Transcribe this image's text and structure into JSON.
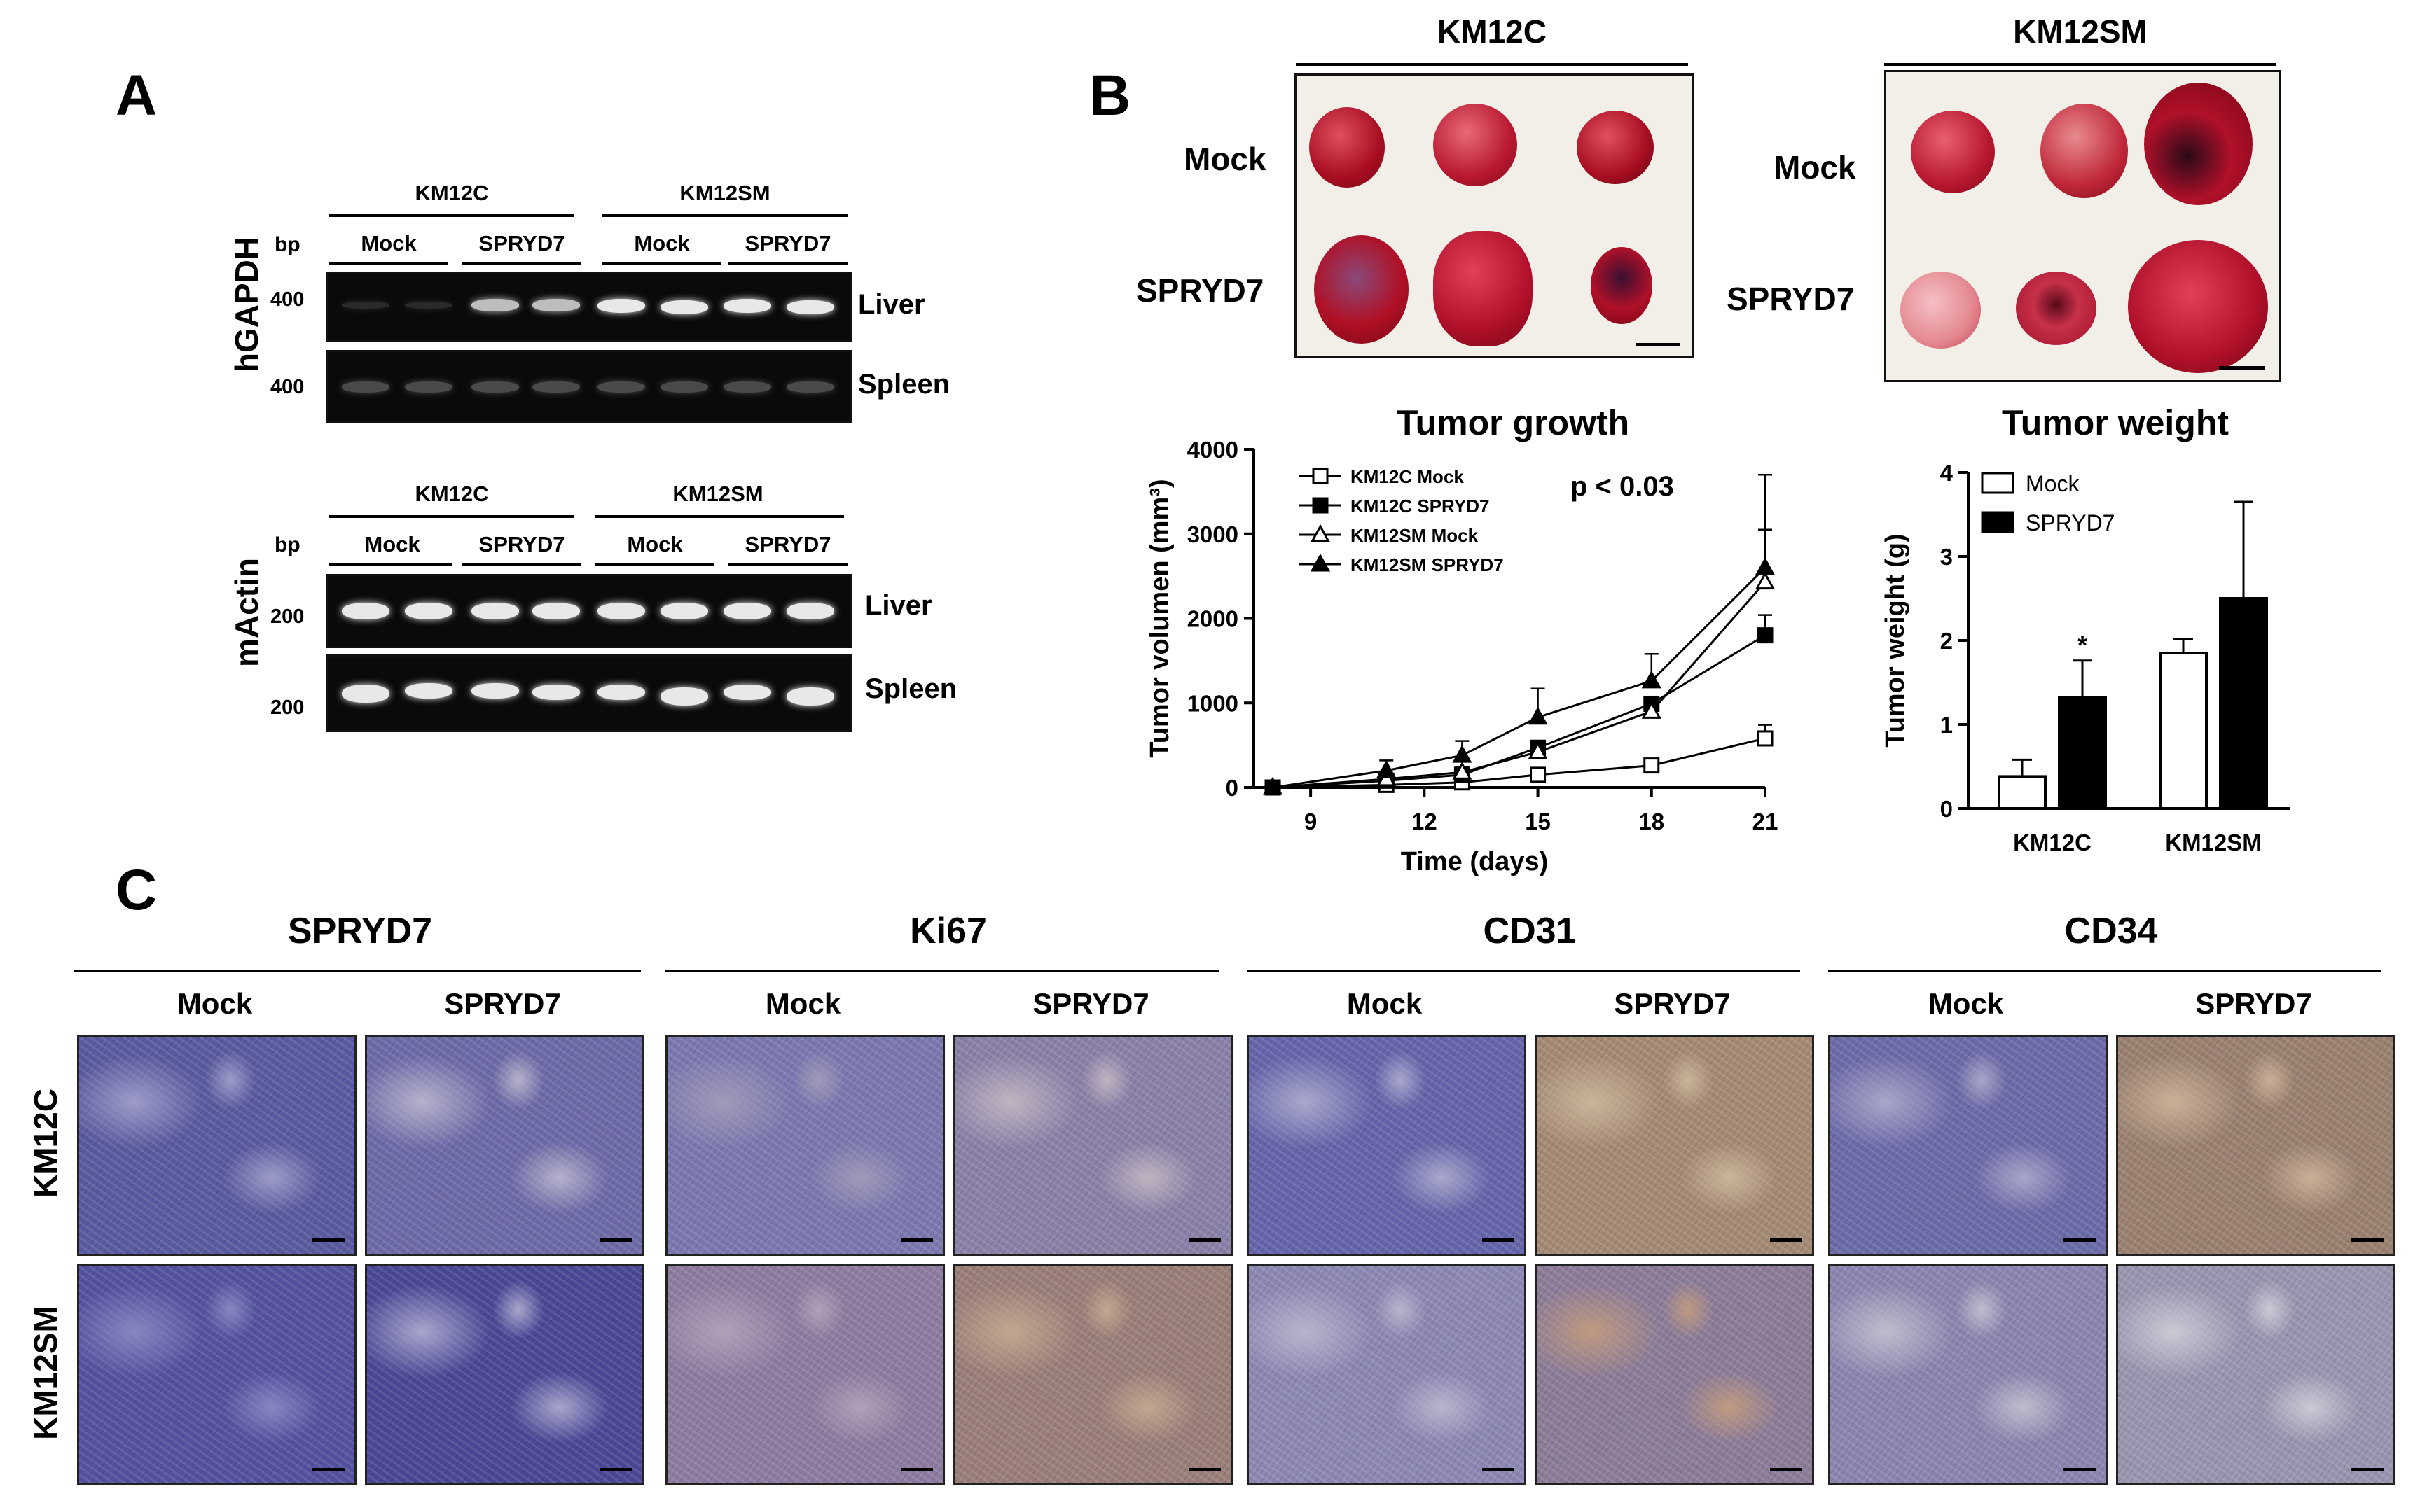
{
  "panels": {
    "a": "A",
    "b": "B",
    "c": "C"
  },
  "panel_a": {
    "bp": "bp",
    "gel1": {
      "ylabel": "hGAPDH",
      "groups": [
        "KM12C",
        "KM12SM"
      ],
      "subgroups": [
        "Mock",
        "SPRYD7",
        "Mock",
        "SPRYD7"
      ],
      "rows": [
        {
          "size": "400",
          "tissue": "Liver"
        },
        {
          "size": "400",
          "tissue": "Spleen"
        }
      ]
    },
    "gel2": {
      "ylabel": "mActin",
      "groups": [
        "KM12C",
        "KM12SM"
      ],
      "subgroups": [
        "Mock",
        "SPRYD7",
        "Mock",
        "SPRYD7"
      ],
      "rows": [
        {
          "size": "200",
          "tissue": "Liver"
        },
        {
          "size": "200",
          "tissue": "Spleen"
        }
      ]
    }
  },
  "panel_b": {
    "photos": [
      {
        "title": "KM12C",
        "rows": [
          "Mock",
          "SPRYD7"
        ]
      },
      {
        "title": "KM12SM",
        "rows": [
          "Mock",
          "SPRYD7"
        ]
      }
    ]
  },
  "chart_data": [
    {
      "type": "line",
      "title": "Tumor growth",
      "xlabel": "Time (days)",
      "ylabel": "Tumor volumen (mm³)",
      "annotation": "p < 0.03",
      "x": [
        8,
        11,
        13,
        15,
        18,
        21
      ],
      "xticks": [
        "9",
        "12",
        "15",
        "18",
        "21"
      ],
      "xlim": [
        7.5,
        21
      ],
      "yticks": [
        "0",
        "1000",
        "2000",
        "3000",
        "4000"
      ],
      "ylim": [
        0,
        4000
      ],
      "series": [
        {
          "name": "KM12C Mock",
          "marker": "square-open",
          "values": [
            0,
            30,
            60,
            150,
            260,
            580
          ],
          "errors": [
            0,
            20,
            20,
            40,
            40,
            160
          ]
        },
        {
          "name": "KM12C SPRYD7",
          "marker": "square-filled",
          "values": [
            0,
            80,
            150,
            470,
            990,
            1800
          ],
          "errors": [
            0,
            30,
            40,
            80,
            80,
            240
          ]
        },
        {
          "name": "KM12SM Mock",
          "marker": "triangle-open",
          "values": [
            0,
            100,
            180,
            420,
            900,
            2430
          ],
          "errors": [
            0,
            40,
            60,
            60,
            80,
            620
          ]
        },
        {
          "name": "KM12SM SPRYD7",
          "marker": "triangle-filled",
          "values": [
            0,
            200,
            380,
            830,
            1260,
            2600
          ],
          "errors": [
            0,
            120,
            170,
            340,
            320,
            1100
          ]
        }
      ]
    },
    {
      "type": "bar",
      "title": "Tumor weight",
      "ylabel": "Tumor weight (g)",
      "categories": [
        "KM12C",
        "KM12SM"
      ],
      "yticks": [
        "0",
        "1",
        "2",
        "3",
        "4"
      ],
      "ylim": [
        0,
        4
      ],
      "significance": "*",
      "series": [
        {
          "name": "Mock",
          "fill": "white",
          "values": [
            0.38,
            1.85
          ],
          "errors": [
            0.2,
            0.17
          ]
        },
        {
          "name": "SPRYD7",
          "fill": "black",
          "values": [
            1.32,
            2.5
          ],
          "errors": [
            0.44,
            1.15
          ]
        }
      ]
    }
  ],
  "panel_c": {
    "markers": [
      "SPRYD7",
      "Ki67",
      "CD31",
      "CD34"
    ],
    "conditions": [
      "Mock",
      "SPRYD7"
    ],
    "rows": [
      "KM12C",
      "KM12SM"
    ]
  },
  "colors": {
    "gel_bg": "#0a0a0a",
    "band": "#e8e8e8",
    "tumor": "#b8102a",
    "ihc_blue": "#6e6aa8",
    "ihc_brown": "#a08a70"
  }
}
